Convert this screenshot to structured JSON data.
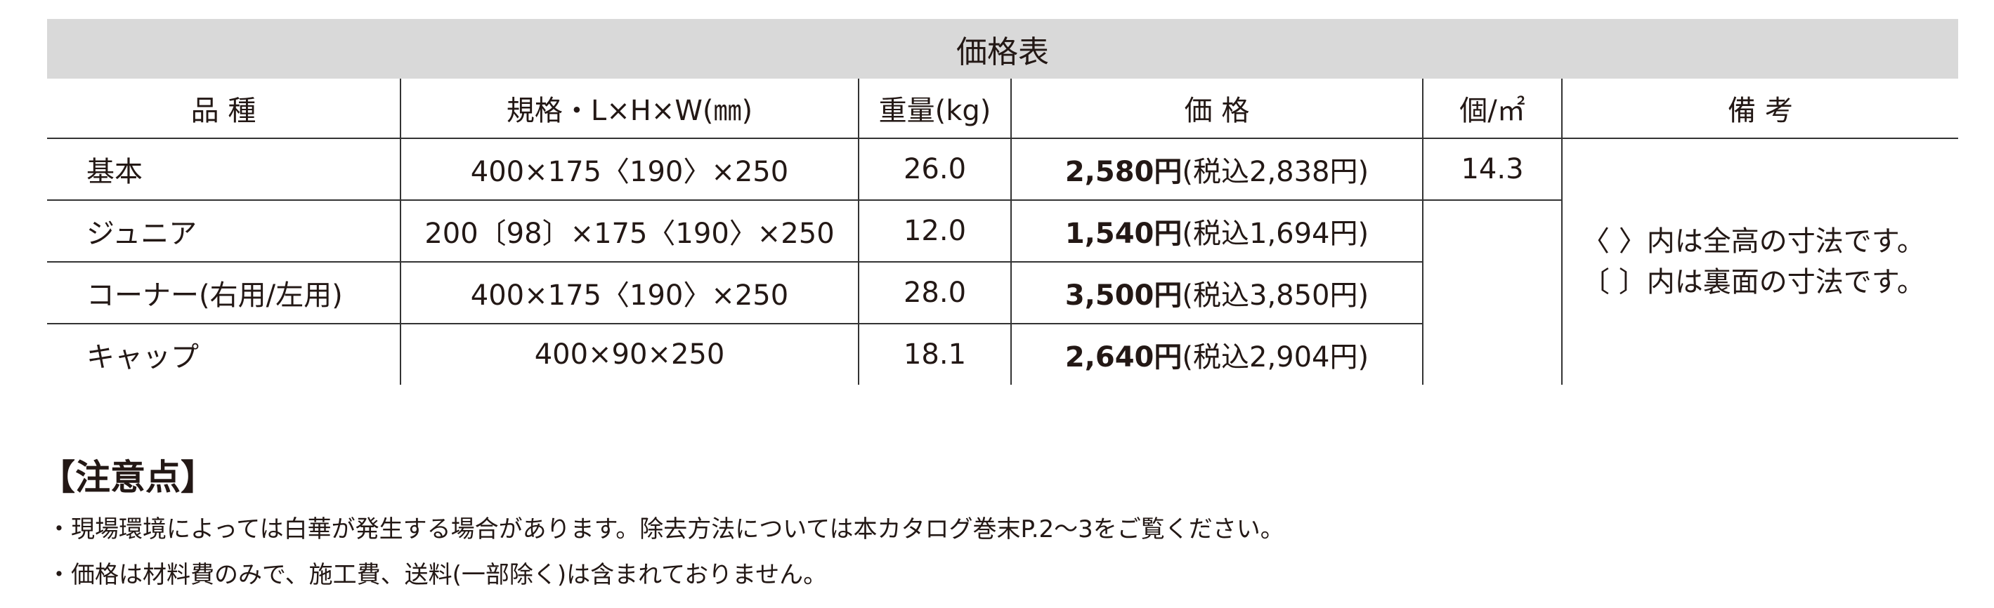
{
  "table": {
    "title": "価格表",
    "headers": [
      "品 種",
      "規格・L×H×W(㎜)",
      "重量(kg)",
      "価 格",
      "個/㎡",
      "備 考"
    ],
    "rows": [
      {
        "name": "基本",
        "spec": "400×175〈190〉×250",
        "weight": "26.0",
        "price": "2,580円",
        "tax_included": "(税込2,838円)"
      },
      {
        "name": "ジュニア",
        "spec": "200〔98〕×175〈190〉×250",
        "weight": "12.0",
        "price": "1,540円",
        "tax_included": "(税込1,694円)"
      },
      {
        "name": "コーナー(右用/左用)",
        "spec": "400×175〈190〉×250",
        "weight": "28.0",
        "price": "3,500円",
        "tax_included": "(税込3,850円)"
      },
      {
        "name": "キャップ",
        "spec": "400×90×250",
        "weight": "18.1",
        "price": "2,640円",
        "tax_included": "(税込2,904円)"
      }
    ],
    "per_sqm": "14.3",
    "remarks": [
      "〈 〉内は全高の寸法です。",
      "〔 〕内は裏面の寸法です。"
    ]
  },
  "notes": {
    "heading": "【注意点】",
    "items": [
      "・現場環境によっては白華が発生する場合があります。除去方法については本カタログ巻末P.2〜3をご覧ください。",
      "・価格は材料費のみで、施工費、送料(一部除く)は含まれておりません。"
    ]
  }
}
